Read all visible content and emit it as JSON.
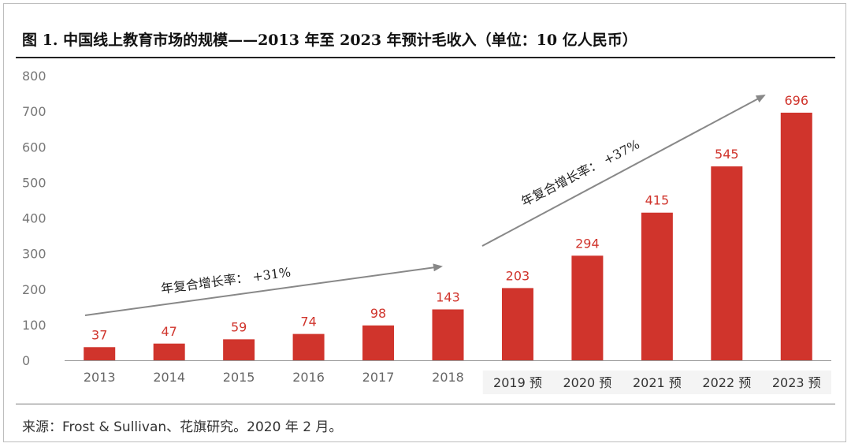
{
  "chart_data": {
    "type": "bar",
    "title": "图 1. 中国线上教育市场的规模——2013 年至 2023 年预计毛收入（单位：10 亿人民币）",
    "categories": [
      "2013",
      "2014",
      "2015",
      "2016",
      "2017",
      "2018",
      "2019 预",
      "2020 预",
      "2021 预",
      "2022 预",
      "2023 预"
    ],
    "forecast_from_index": 6,
    "values": [
      37,
      47,
      59,
      74,
      98,
      143,
      203,
      294,
      415,
      545,
      696
    ],
    "data_labels": [
      "37",
      "47",
      "59",
      "74",
      "98",
      "143",
      "203",
      "294",
      "415",
      "545",
      "696"
    ],
    "ylim": [
      0,
      800
    ],
    "yticks": [
      "0",
      "100",
      "200",
      "300",
      "400",
      "500",
      "600",
      "700",
      "800"
    ],
    "grid": false,
    "bar_color": "#d0342c",
    "label_color": "#d0342c",
    "annotations": [
      {
        "text": "年复合增长率：  +31%",
        "from_index": 0,
        "to_index": 5
      },
      {
        "text": "年复合增长率：  +37%",
        "from_index": 6,
        "to_index": 10
      }
    ]
  },
  "source": "来源：Frost & Sullivan、花旗研究。2020 年 2 月。"
}
